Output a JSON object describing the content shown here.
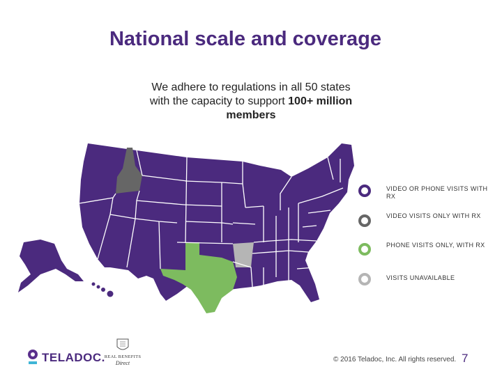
{
  "slide": {
    "title": "National scale and coverage",
    "subtitle_line1": "We adhere to regulations in all 50 states",
    "subtitle_line2_pre": "with the capacity to support ",
    "subtitle_line2_bold": "100+ million",
    "subtitle_line3": "members"
  },
  "legend": [
    {
      "label": "VIDEO OR PHONE VISITS WITH RX",
      "color": "#4b2a7e"
    },
    {
      "label": "VIDEO VISITS ONLY WITH RX",
      "color": "#666666"
    },
    {
      "label": "PHONE VISITS ONLY, WITH RX",
      "color": "#7dbb5f"
    },
    {
      "label": "VISITS UNAVAILABLE",
      "color": "#b5b5b5"
    }
  ],
  "map": {
    "colors": {
      "default": "#4b2a7e",
      "idaho": "#666666",
      "texas": "#7dbb5f",
      "arkansas": "#b5b5b5"
    }
  },
  "footer": {
    "logo_text": "TELADOC.",
    "partner_logo_line1": "REAL BENEFITS",
    "partner_logo_line2": "Direct",
    "copyright": "© 2016 Teladoc, Inc. All rights reserved.",
    "page_number": "7"
  }
}
